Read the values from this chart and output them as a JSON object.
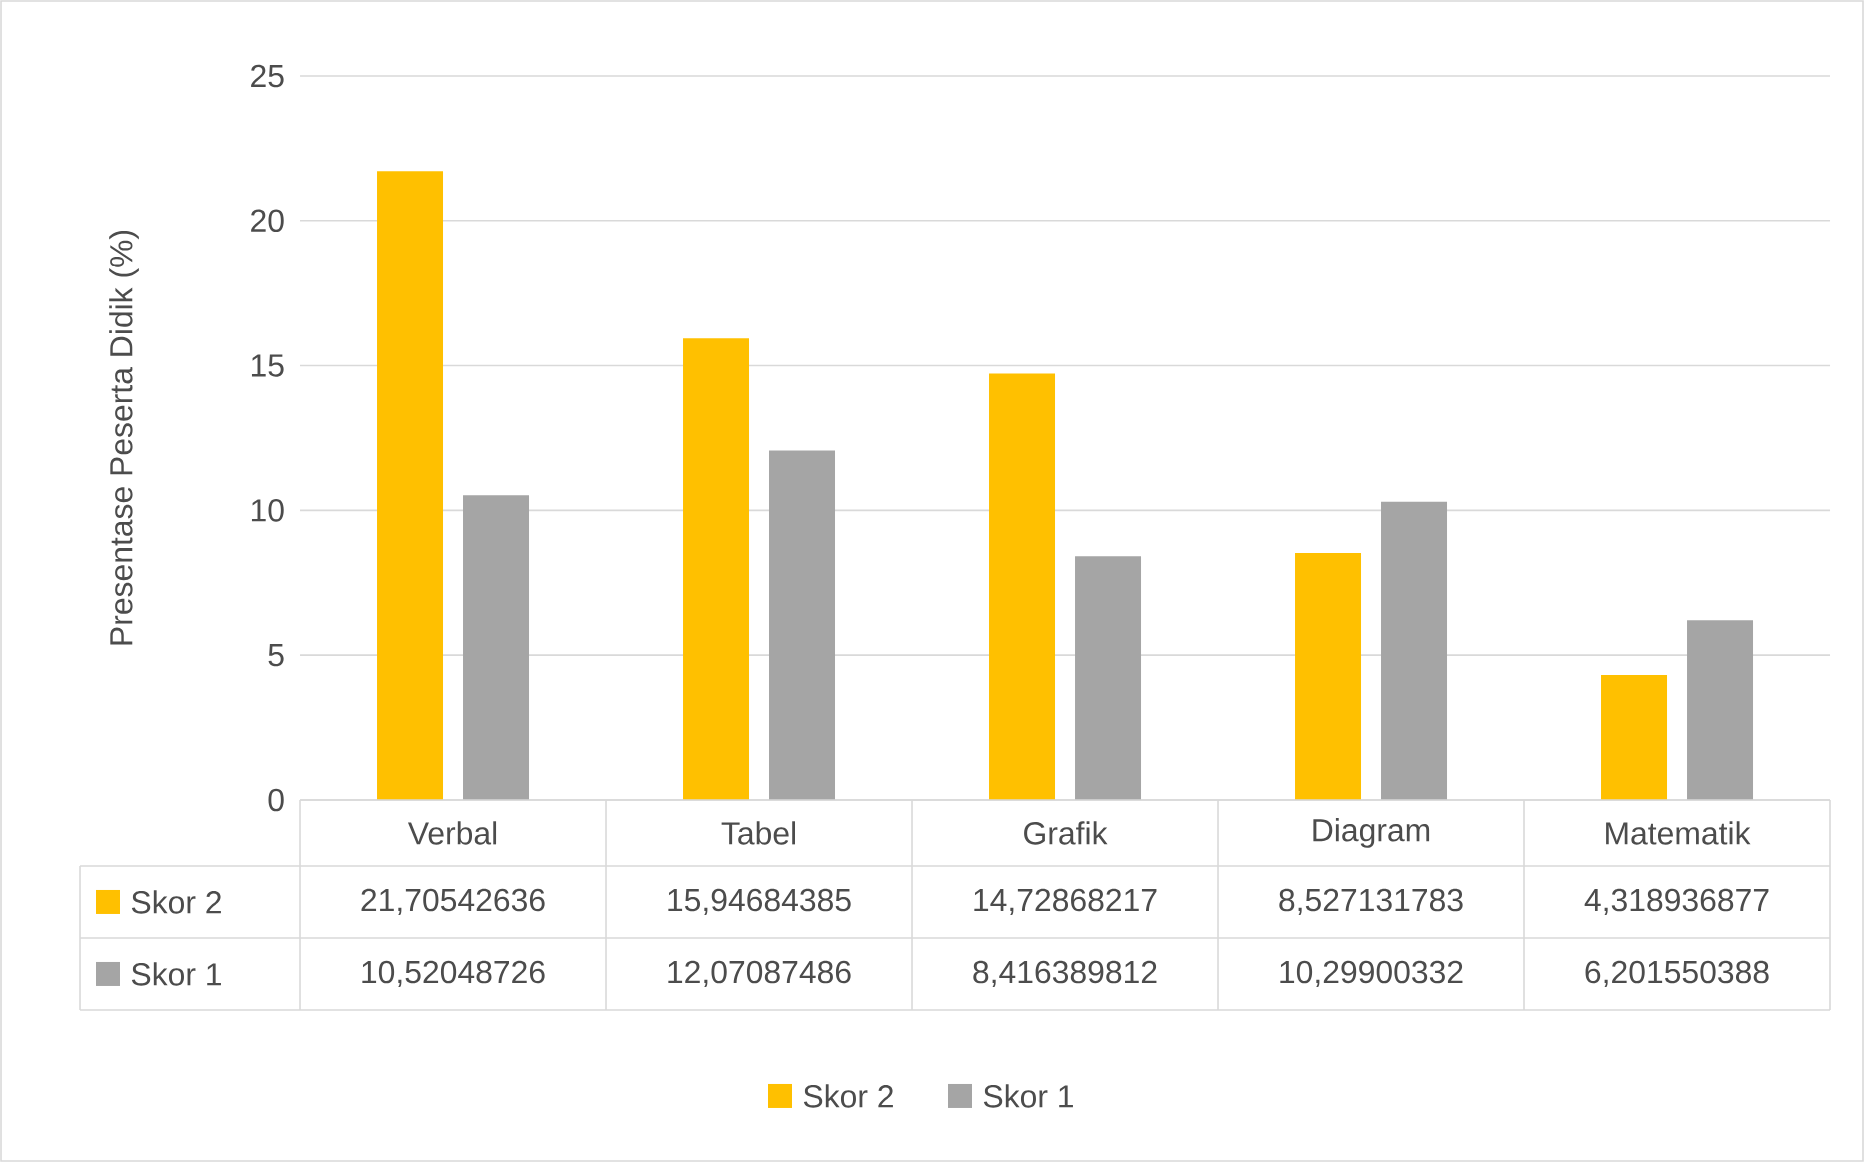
{
  "chart_data": {
    "type": "bar",
    "ylabel": "Presentase Peserta Didik (%)",
    "categories": [
      "Verbal",
      "Tabel",
      "Grafik",
      "Diagram",
      "Matematik"
    ],
    "series": [
      {
        "name": "Skor 2",
        "color": "#ffc000",
        "values": [
          21.70542636,
          15.94684385,
          14.72868217,
          8.527131783,
          4.318936877
        ],
        "value_labels": [
          "21,70542636",
          "15,94684385",
          "14,72868217",
          "8,527131783",
          "4,318936877"
        ]
      },
      {
        "name": "Skor 1",
        "color": "#a5a5a5",
        "values": [
          10.52048726,
          12.07087486,
          8.416389812,
          10.29900332,
          6.201550388
        ],
        "value_labels": [
          "10,52048726",
          "12,07087486",
          "8,416389812",
          "10,29900332",
          "6,201550388"
        ]
      }
    ],
    "ylim": [
      0,
      25
    ],
    "yticks": [
      0,
      5,
      10,
      15,
      20,
      25
    ],
    "grid": "y",
    "legend": "bottom"
  }
}
